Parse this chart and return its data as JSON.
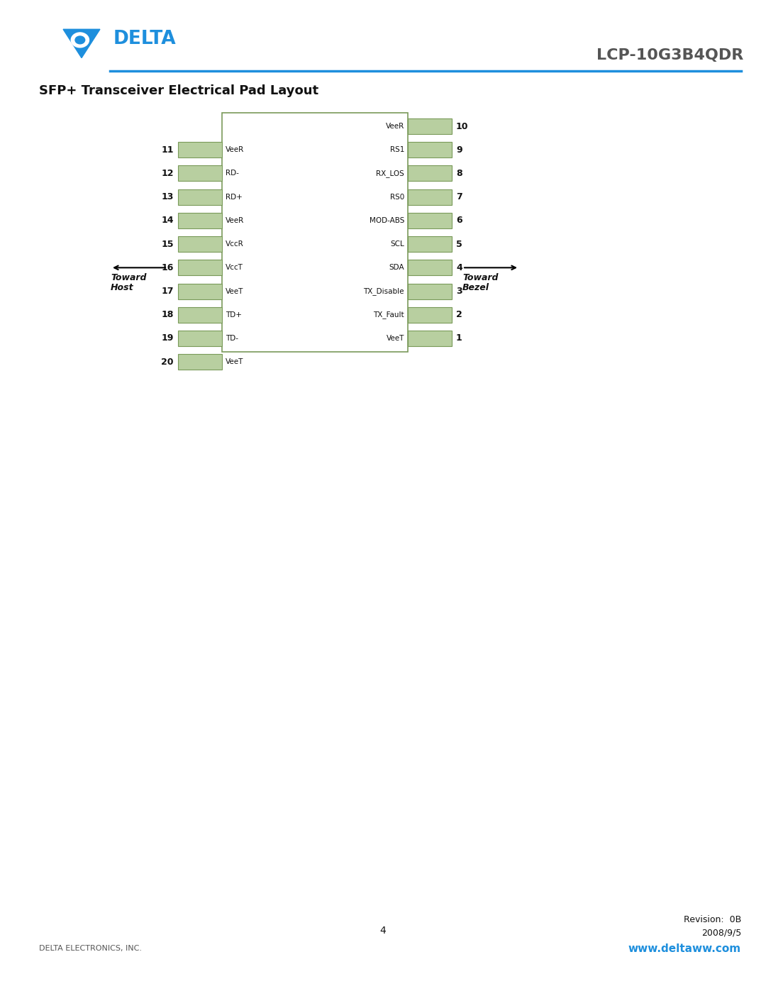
{
  "page_title": "LCP-10G3B4QDR",
  "section_title": "SFP+ Transceiver Electrical Pad Layout",
  "background_color": "#ffffff",
  "pad_color": "#b8cfa0",
  "pad_border_color": "#7a9a5a",
  "box_border_color": "#7a9a5a",
  "left_pads": [
    {
      "num": 11,
      "label": "VeeR"
    },
    {
      "num": 12,
      "label": "RD-"
    },
    {
      "num": 13,
      "label": "RD+"
    },
    {
      "num": 14,
      "label": "VeeR"
    },
    {
      "num": 15,
      "label": "VccR"
    },
    {
      "num": 16,
      "label": "VccT"
    },
    {
      "num": 17,
      "label": "VeeT"
    },
    {
      "num": 18,
      "label": "TD+"
    },
    {
      "num": 19,
      "label": "TD-"
    },
    {
      "num": 20,
      "label": "VeeT"
    }
  ],
  "right_pads": [
    {
      "num": 10,
      "label": "VeeR"
    },
    {
      "num": 9,
      "label": "RS1"
    },
    {
      "num": 8,
      "label": "RX_LOS"
    },
    {
      "num": 7,
      "label": "RS0"
    },
    {
      "num": 6,
      "label": "MOD-ABS"
    },
    {
      "num": 5,
      "label": "SCL"
    },
    {
      "num": 4,
      "label": "SDA"
    },
    {
      "num": 3,
      "label": "TX_Disable"
    },
    {
      "num": 2,
      "label": "TX_Fault"
    },
    {
      "num": 1,
      "label": "VeeT"
    }
  ],
  "toward_host_label1": "Toward",
  "toward_host_label2": "Host",
  "toward_bezel_label1": "Toward",
  "toward_bezel_label2": "Bezel",
  "footer_left": "DELTA ELECTRONICS, INC.",
  "footer_center": "4",
  "footer_right1": "Revision:  0B",
  "footer_right2": "2008/9/5",
  "footer_url": "www.deltaww.com",
  "url_color": "#1e8fdd",
  "header_line_color": "#1e8fdd",
  "logo_blue": "#1e8fdd"
}
